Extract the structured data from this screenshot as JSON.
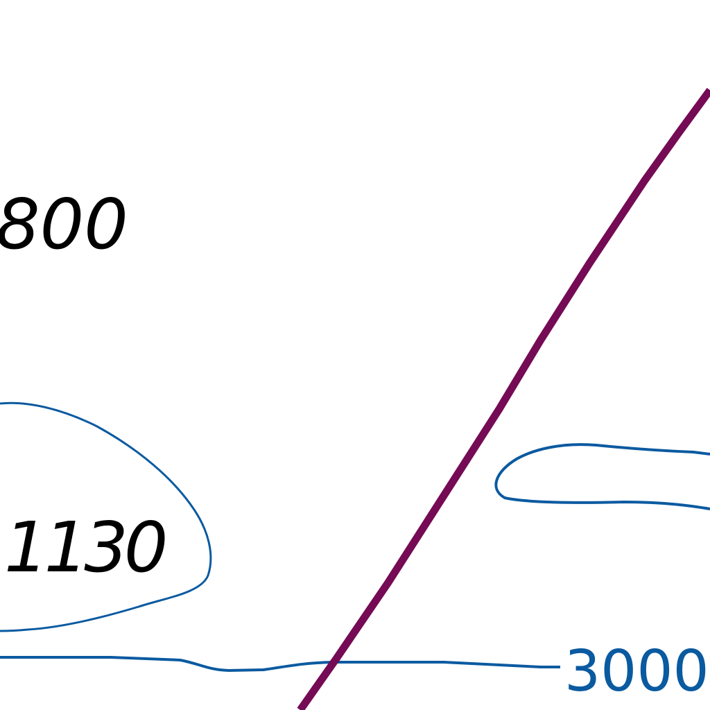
{
  "map": {
    "colors": {
      "background": "#ffffff",
      "contour": "#0a5aa0",
      "route": "#750a55",
      "label": "#000000"
    },
    "elevation_labels": [
      {
        "id": "elev-800",
        "text": "800"
      },
      {
        "id": "elev-1130",
        "text": "1130"
      }
    ],
    "contour_labels": [
      {
        "id": "contour-3000",
        "text": "3000"
      }
    ]
  }
}
